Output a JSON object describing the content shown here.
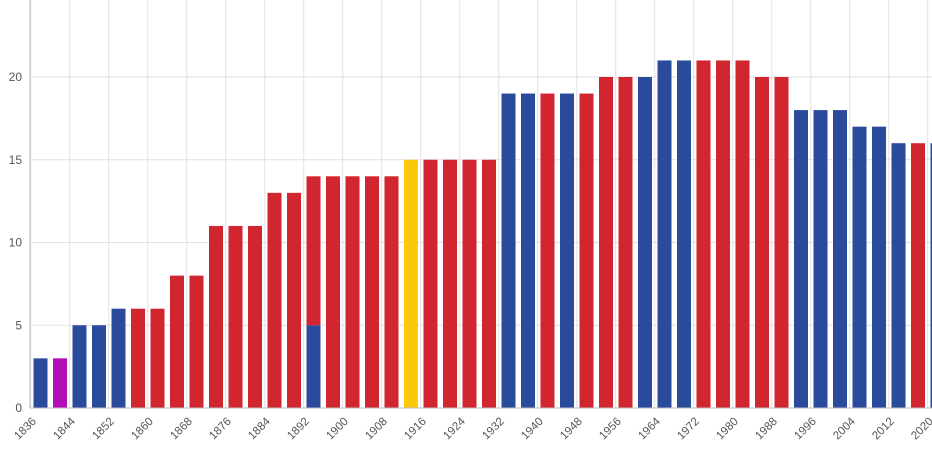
{
  "chart_data": {
    "type": "bar",
    "title": "",
    "xlabel": "",
    "ylabel": "",
    "ylim": [
      0,
      25
    ],
    "y_ticks": [
      "0",
      "5",
      "10",
      "15",
      "20"
    ],
    "x_tick_labels": [
      "1836",
      "1844",
      "1852",
      "1860",
      "1868",
      "1876",
      "1884",
      "1892",
      "1900",
      "1908",
      "1916",
      "1924",
      "1932",
      "1940",
      "1948",
      "1956",
      "1964",
      "1972",
      "1980",
      "1988",
      "1996",
      "2004",
      "2012",
      "2020"
    ],
    "grid": true,
    "legend": "none",
    "colors": {
      "blue": "#2a4b9b",
      "red": "#d1262f",
      "purple": "#b10fb5",
      "yellow": "#fcc80b",
      "grid": "#e2e2e2",
      "axis": "#bdbdbd"
    },
    "categories": [
      "1836",
      "1840",
      "1844",
      "1848",
      "1852",
      "1856",
      "1860",
      "1864",
      "1868",
      "1872",
      "1876",
      "1880",
      "1884",
      "1888",
      "1892",
      "1896",
      "1900",
      "1904",
      "1908",
      "1912",
      "1916",
      "1920",
      "1924",
      "1928",
      "1932",
      "1936",
      "1940",
      "1944",
      "1948",
      "1952",
      "1956",
      "1960",
      "1964",
      "1968",
      "1972",
      "1976",
      "1980",
      "1984",
      "1988",
      "1992",
      "1996",
      "2000",
      "2004",
      "2008",
      "2012",
      "2016",
      "2020"
    ],
    "values": [
      3,
      3,
      5,
      5,
      6,
      6,
      6,
      8,
      8,
      11,
      11,
      11,
      13,
      13,
      14,
      14,
      14,
      14,
      14,
      15,
      15,
      15,
      15,
      15,
      19,
      19,
      19,
      19,
      19,
      20,
      20,
      20,
      21,
      21,
      21,
      21,
      21,
      20,
      20,
      18,
      18,
      18,
      17,
      17,
      16,
      16,
      16
    ],
    "bar_colors": [
      "blue",
      "purple",
      "blue",
      "blue",
      "blue",
      "red",
      "red",
      "red",
      "red",
      "red",
      "red",
      "red",
      "red",
      "red",
      "red",
      "red",
      "red",
      "red",
      "red",
      "yellow",
      "red",
      "red",
      "red",
      "red",
      "blue",
      "blue",
      "red",
      "blue",
      "red",
      "red",
      "red",
      "blue",
      "blue",
      "blue",
      "red",
      "red",
      "red",
      "red",
      "red",
      "blue",
      "blue",
      "blue",
      "blue",
      "blue",
      "blue",
      "red",
      "blue"
    ],
    "split_bars": [
      {
        "category": "1892",
        "segments": [
          {
            "color": "blue",
            "value": 5
          },
          {
            "color": "red",
            "value": 9
          }
        ]
      }
    ]
  }
}
